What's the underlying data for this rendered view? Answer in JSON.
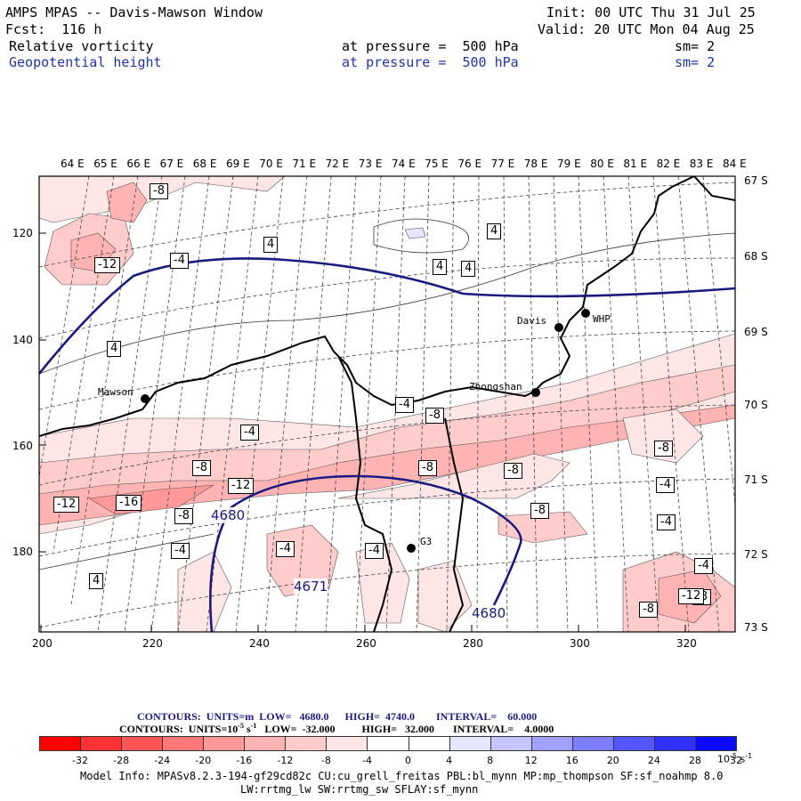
{
  "header": {
    "title": "AMPS MPAS -- Davis-Mawson Window",
    "fcst": "Fcst:  116 h",
    "init": "Init: 00 UTC Thu 31 Jul 25",
    "valid": "Valid: 20 UTC Mon 04 Aug 25",
    "field1": "Relative vorticity",
    "field1_level": "at pressure =  500 hPa",
    "field1_sm": "sm= 2",
    "field2": "Geopotential height",
    "field2_level": "at pressure =  500 hPa",
    "field2_sm": "sm= 2"
  },
  "map": {
    "top_lon_labels": [
      "64 E",
      "65 E",
      "66 E",
      "67 E",
      "68 E",
      "69 E",
      "70 E",
      "71 E",
      "72 E",
      "73 E",
      "74 E",
      "75 E",
      "76 E",
      "77 E",
      "78 E",
      "79 E",
      "80 E",
      "81 E",
      "82 E",
      "83 E",
      "84 E"
    ],
    "right_lat_labels": [
      "67 S",
      "68 S",
      "69 S",
      "70 S",
      "71 S",
      "72 S",
      "73 S"
    ],
    "left_y_labels": [
      "120",
      "140",
      "160",
      "180"
    ],
    "bottom_x_labels": [
      "200",
      "220",
      "240",
      "260",
      "280",
      "300",
      "320"
    ],
    "stations": [
      {
        "name": "Davis"
      },
      {
        "name": "WHP"
      },
      {
        "name": "Mawson"
      },
      {
        "name": "Zhongshan"
      },
      {
        "name": "G3"
      }
    ],
    "vorticity_labels": [
      "-8",
      "4",
      "-12",
      "-4",
      "4",
      "4",
      "4",
      "4",
      "-4",
      "-4",
      "-8",
      "-8",
      "-4",
      "-8",
      "-8",
      "-12",
      "-8",
      "-4",
      "-12",
      "-16",
      "-8",
      "-4",
      "-4",
      "-4",
      "-8",
      "4",
      "-4",
      "-8",
      "-8",
      "-12"
    ],
    "height_labels": [
      "4680",
      "4671",
      "4680"
    ]
  },
  "footer": {
    "contours1": "CONTOURS:  UNITS=m  LOW=   4680.0      HIGH=  4740.0        INTERVAL=    60.000",
    "contours2_pre": "CONTOURS:  UNITS=10",
    "contours2_exp": "-5",
    "contours2_mid": " s",
    "contours2_exp2": "-1",
    "contours2_post": "   LOW=  -32.000          HIGH=   32.000       INTERVAL=    4.0000",
    "model_info": "Model Info: MPASv8.2.3-194-gf29cd82c CU:cu_grell_freitas PBL:bl_mynn MP:mp_thompson SF:sf_noahmp 8.0",
    "model_info2": "LW:rrtmg_lw SW:rrtmg_sw SFLAY:sf_mynn"
  },
  "colorbar": {
    "labels": [
      "-32",
      "-28",
      "-24",
      "-20",
      "-16",
      "-12",
      "-8",
      "-4",
      "0",
      "4",
      "8",
      "12",
      "16",
      "20",
      "24",
      "28",
      "32"
    ],
    "units_base": "10",
    "units_exp": "-5",
    "units_s": " s",
    "units_exp2": "-1",
    "colors": [
      "#ff0000",
      "#ff3333",
      "#ff5555",
      "#ff7777",
      "#ff9999",
      "#ffb3b3",
      "#ffcccc",
      "#ffe6e6",
      "#ffffff",
      "#ffffff",
      "#e6e6ff",
      "#c4c4ff",
      "#a0a0ff",
      "#7d7dff",
      "#5555ff",
      "#2f2fff",
      "#0b0bff"
    ]
  }
}
